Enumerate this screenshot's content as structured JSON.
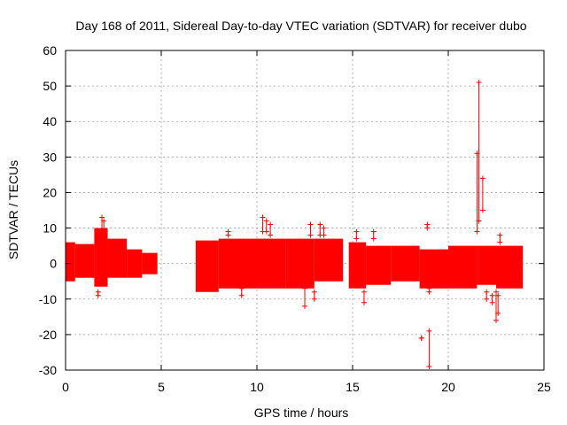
{
  "chart_data": {
    "type": "scatter",
    "title": "Day 168 of 2011, Sidereal Day-to-day VTEC variation (SDTVAR) for receiver dubo",
    "xlabel": "GPS time / hours",
    "ylabel": "SDTVAR / TECUs",
    "xlim": [
      0,
      25
    ],
    "ylim": [
      -30,
      60
    ],
    "xticks": [
      0,
      5,
      10,
      15,
      20,
      25
    ],
    "yticks": [
      -30,
      -20,
      -10,
      0,
      10,
      20,
      30,
      40,
      50,
      60
    ],
    "grid": true,
    "series_color": "#ff0000",
    "bands": [
      {
        "x": [
          0.0,
          0.5
        ],
        "low": -5,
        "high": 6
      },
      {
        "x": [
          0.5,
          1.5
        ],
        "low": -4,
        "high": 5.5
      },
      {
        "x": [
          1.5,
          2.2
        ],
        "low": -6.5,
        "high": 10
      },
      {
        "x": [
          2.2,
          3.2
        ],
        "low": -4,
        "high": 7
      },
      {
        "x": [
          3.2,
          4.0
        ],
        "low": -4,
        "high": 4
      },
      {
        "x": [
          4.0,
          4.8
        ],
        "low": -3,
        "high": 3
      },
      {
        "x": [
          6.8,
          8.0
        ],
        "low": -8,
        "high": 6.5
      },
      {
        "x": [
          8.0,
          10.0
        ],
        "low": -7,
        "high": 7
      },
      {
        "x": [
          10.0,
          11.5
        ],
        "low": -7,
        "high": 7
      },
      {
        "x": [
          11.5,
          13.0
        ],
        "low": -7,
        "high": 7
      },
      {
        "x": [
          13.0,
          14.5
        ],
        "low": -5,
        "high": 7
      },
      {
        "x": [
          14.8,
          15.7
        ],
        "low": -7,
        "high": 6
      },
      {
        "x": [
          15.7,
          17.0
        ],
        "low": -6,
        "high": 5
      },
      {
        "x": [
          17.0,
          18.5
        ],
        "low": -5,
        "high": 5
      },
      {
        "x": [
          18.5,
          20.0
        ],
        "low": -7,
        "high": 4
      },
      {
        "x": [
          20.0,
          21.5
        ],
        "low": -7,
        "high": 5
      },
      {
        "x": [
          21.5,
          22.5
        ],
        "low": -6,
        "high": 5
      },
      {
        "x": [
          22.5,
          23.9
        ],
        "low": -7,
        "high": 5
      }
    ],
    "errorbars": [
      {
        "x": 1.7,
        "low": -9,
        "high": -8
      },
      {
        "x": 1.9,
        "low": 9,
        "high": 13
      },
      {
        "x": 2.0,
        "low": 8,
        "high": 12
      },
      {
        "x": 8.5,
        "low": 8,
        "high": 9
      },
      {
        "x": 9.2,
        "low": -9,
        "high": -7
      },
      {
        "x": 10.3,
        "low": 9,
        "high": 13
      },
      {
        "x": 10.5,
        "low": 9,
        "high": 12
      },
      {
        "x": 10.7,
        "low": 8,
        "high": 11
      },
      {
        "x": 12.5,
        "low": -12,
        "high": -7
      },
      {
        "x": 12.8,
        "low": 8,
        "high": 11
      },
      {
        "x": 13.0,
        "low": -10,
        "high": -8
      },
      {
        "x": 13.3,
        "low": 8,
        "high": 11
      },
      {
        "x": 13.5,
        "low": 8,
        "high": 10
      },
      {
        "x": 15.2,
        "low": 7,
        "high": 9
      },
      {
        "x": 15.6,
        "low": -11,
        "high": -8
      },
      {
        "x": 16.1,
        "low": 7,
        "high": 9
      },
      {
        "x": 18.6,
        "low": -21,
        "high": -21
      },
      {
        "x": 18.9,
        "low": 10,
        "high": 11
      },
      {
        "x": 19.0,
        "low": -29,
        "high": -19
      },
      {
        "x": 19.0,
        "low": -8,
        "high": -7
      },
      {
        "x": 21.5,
        "low": 9,
        "high": 31
      },
      {
        "x": 21.6,
        "low": 12,
        "high": 51
      },
      {
        "x": 21.8,
        "low": 15,
        "high": 24
      },
      {
        "x": 22.0,
        "low": -10,
        "high": -8
      },
      {
        "x": 22.3,
        "low": -11,
        "high": -9
      },
      {
        "x": 22.5,
        "low": -16,
        "high": -8
      },
      {
        "x": 22.6,
        "low": -14,
        "high": -9
      },
      {
        "x": 22.7,
        "low": 6,
        "high": 8
      }
    ]
  }
}
